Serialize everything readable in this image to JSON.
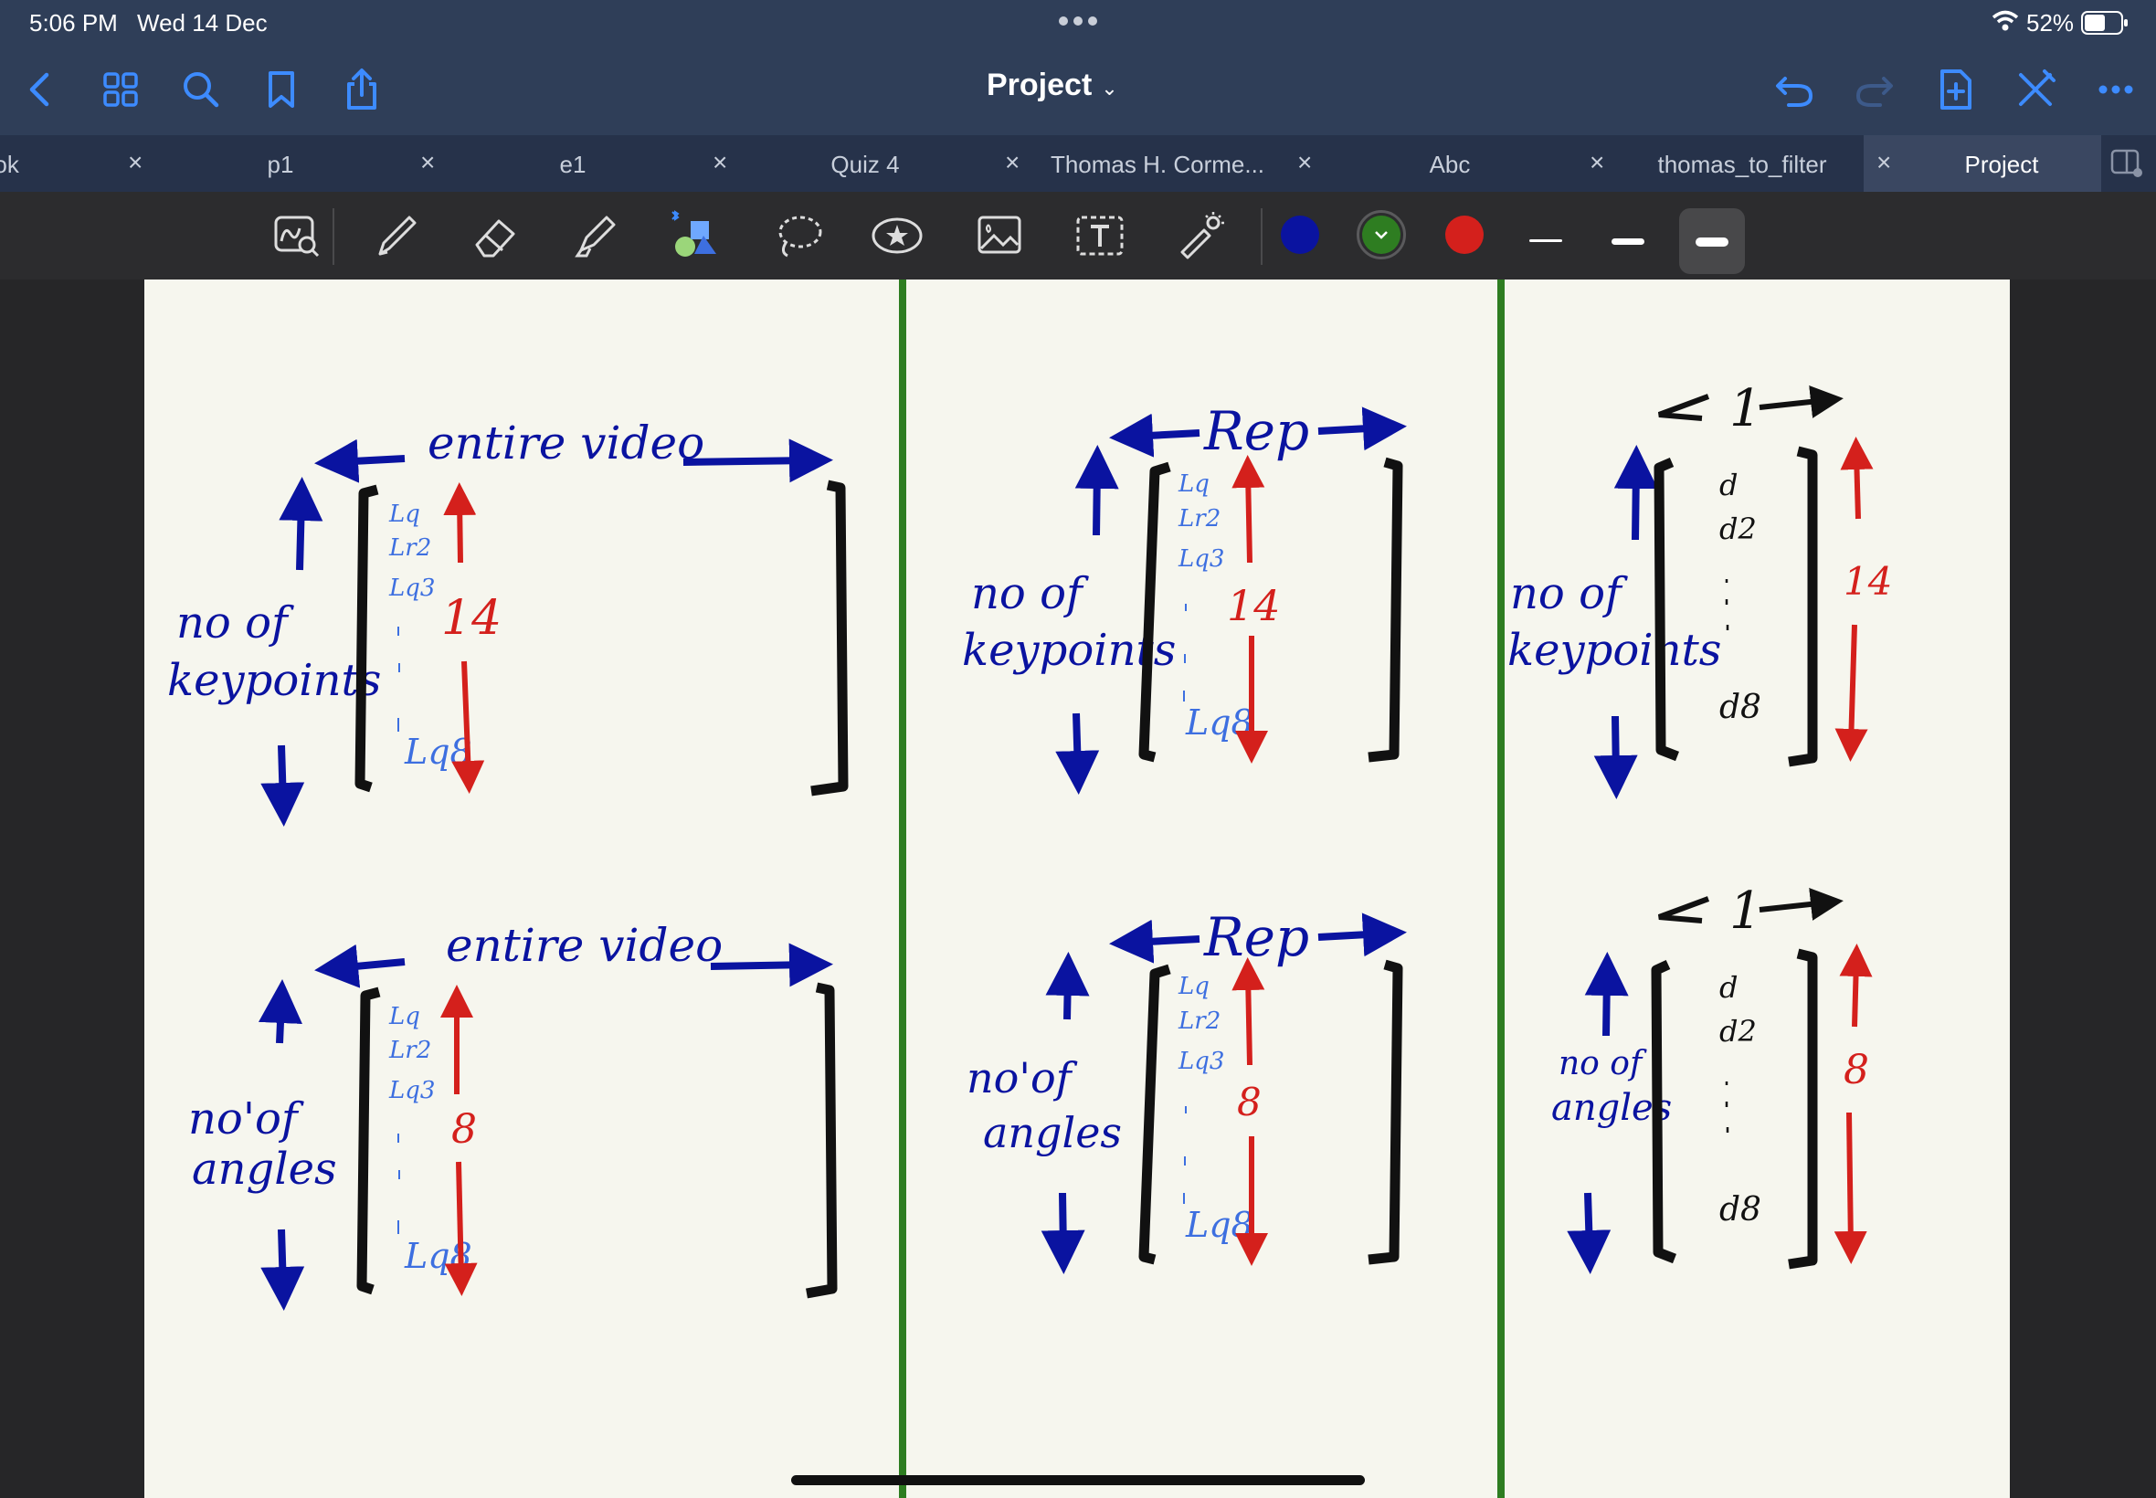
{
  "status_bar": {
    "time": "5:06 PM",
    "date": "Wed 14 Dec",
    "battery": "52%"
  },
  "nav": {
    "title": "Project",
    "icons": [
      "back-chevron-icon",
      "grid-icon",
      "search-icon",
      "bookmark-icon",
      "share-icon",
      "undo-icon",
      "redo-icon",
      "add-page-icon",
      "close-pen-icon",
      "more-icon"
    ]
  },
  "tabs": [
    {
      "label": "ebook"
    },
    {
      "label": "p1"
    },
    {
      "label": "e1"
    },
    {
      "label": "Quiz 4"
    },
    {
      "label": "Thomas H. Corme..."
    },
    {
      "label": "Abc"
    },
    {
      "label": "thomas_to_filter"
    },
    {
      "label": "Project",
      "active": true
    }
  ],
  "toolbar": {
    "tools": [
      "zoom-lasso-icon",
      "pen-icon",
      "eraser-icon",
      "highlighter-icon",
      "shapes-icon",
      "lasso-icon",
      "sticker-icon",
      "image-icon",
      "text-icon",
      "laser-pointer-icon"
    ],
    "colors": {
      "blue": "#0a13a0",
      "green": "#2e7d21",
      "red": "#d4201c"
    },
    "selected_color": "green",
    "stroke_widths": [
      "thin",
      "medium",
      "thick"
    ],
    "selected_stroke": "thick"
  },
  "note": {
    "col1_top": {
      "arrow_label": "entire video",
      "side_label_1": "no of",
      "side_label_2": "keypoints",
      "row_labels": [
        "Lq",
        "Lr2",
        "Lq3",
        "Lq8"
      ],
      "count": "14"
    },
    "col1_bottom": {
      "arrow_label": "entire video",
      "side_label_1": "no'of",
      "side_label_2": "angles",
      "row_labels": [
        "Lq",
        "Lr2",
        "Lq3",
        "Lq8"
      ],
      "count": "8"
    },
    "col2_top": {
      "arrow_label": "Rep",
      "side_label_1": "no of",
      "side_label_2": "keypoints",
      "row_labels": [
        "Lq",
        "Lr2",
        "Lq3",
        "Lq8"
      ],
      "count": "14"
    },
    "col2_bottom": {
      "arrow_label": "Rep",
      "side_label_1": "no'of",
      "side_label_2": "angles",
      "row_labels": [
        "Lq",
        "Lr2",
        "Lq3",
        "Lq8"
      ],
      "count": "8"
    },
    "col3_top": {
      "arrow_label": "1",
      "side_label_1": "no of",
      "side_label_2": "keypoints",
      "row_labels": [
        "d",
        "d2",
        "d8"
      ],
      "count": "14"
    },
    "col3_bottom": {
      "arrow_label": "1",
      "side_label_1": "no of",
      "side_label_2": "angles",
      "row_labels": [
        "d",
        "d2",
        "d8"
      ],
      "count": "8"
    }
  }
}
